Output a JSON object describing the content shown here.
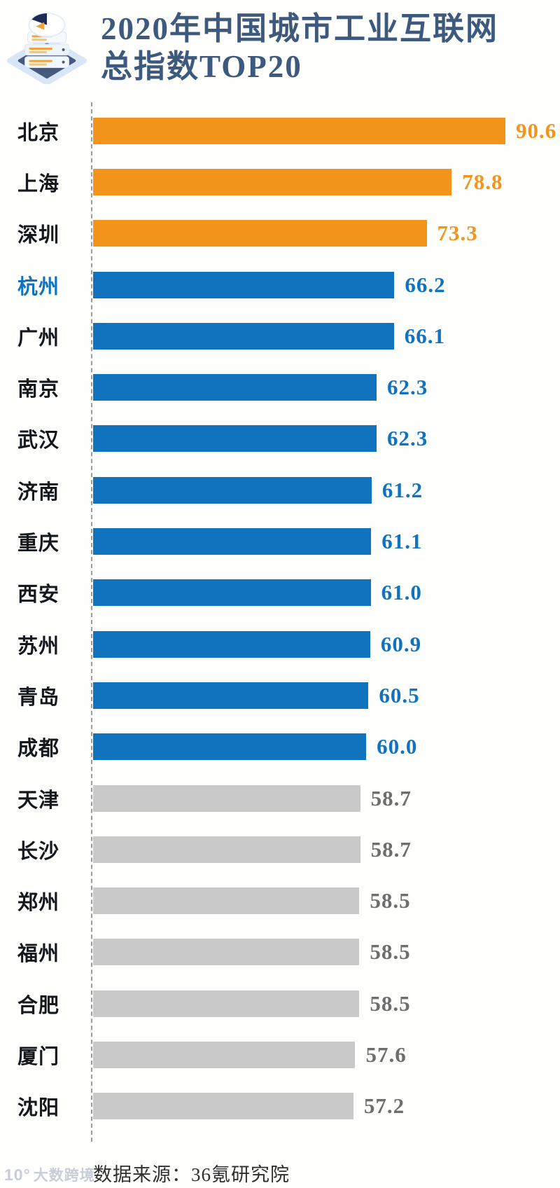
{
  "header": {
    "title_line1": "2020年中国城市工业互联网",
    "title_line2": "总指数TOP20",
    "icon": "layered-data-stack-icon"
  },
  "chart_data": {
    "type": "bar",
    "orientation": "horizontal",
    "title": "2020年中国城市工业互联网总指数TOP20",
    "categories": [
      "北京",
      "上海",
      "深圳",
      "杭州",
      "广州",
      "南京",
      "武汉",
      "济南",
      "重庆",
      "西安",
      "苏州",
      "青岛",
      "成都",
      "天津",
      "长沙",
      "郑州",
      "福州",
      "合肥",
      "厦门",
      "沈阳"
    ],
    "values": [
      90.6,
      78.8,
      73.3,
      66.2,
      66.1,
      62.3,
      62.3,
      61.2,
      61.1,
      61.0,
      60.9,
      60.5,
      60.0,
      58.7,
      58.7,
      58.5,
      58.5,
      58.5,
      57.6,
      57.2
    ],
    "groups": [
      "orange",
      "orange",
      "orange",
      "blue",
      "blue",
      "blue",
      "blue",
      "blue",
      "blue",
      "blue",
      "blue",
      "blue",
      "blue",
      "gray",
      "gray",
      "gray",
      "gray",
      "gray",
      "gray",
      "gray"
    ],
    "highlighted_category": "杭州",
    "value_labels_shown": true,
    "xlim": [
      0,
      90.6
    ],
    "grid": false,
    "legend": null,
    "axis_style": "dashed-baseline-left"
  },
  "colors": {
    "orange_bar": "#f3941d",
    "orange_value": "#f3941d",
    "blue_bar": "#1173bd",
    "blue_value": "#1173bd",
    "gray_bar": "#c9c9c9",
    "gray_value": "#6e6e6e",
    "title": "#3d5a7e",
    "city_label": "#15191e",
    "highlight_city": "#1173bd"
  },
  "footer": {
    "source_label": "数据来源：36氪研究院",
    "watermark_mark": "10°",
    "watermark_text": "大数跨境"
  }
}
